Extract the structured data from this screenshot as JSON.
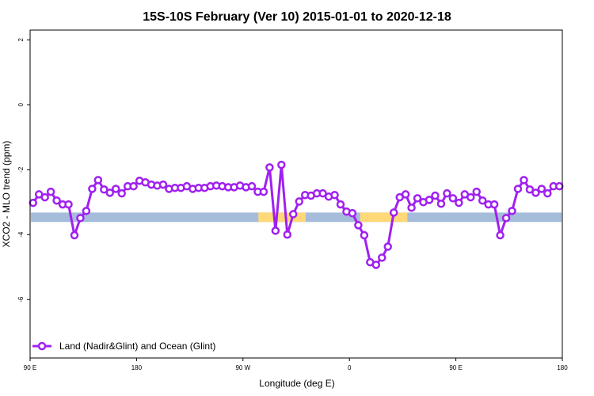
{
  "chart_data": {
    "type": "line",
    "title": "15S-10S February (Ver 10)   2015-01-01 to 2020-12-18",
    "xlabel": "Longitude (deg E)",
    "ylabel": "XCO2 - MLO trend (ppm)",
    "xlim": [
      90,
      540
    ],
    "ylim": [
      -7.8,
      2.3
    ],
    "x_ticks": [
      {
        "value": 90,
        "label": "90 E"
      },
      {
        "value": 180,
        "label": "180"
      },
      {
        "value": 270,
        "label": "90 W"
      },
      {
        "value": 360,
        "label": "0"
      },
      {
        "value": 450,
        "label": "90 E"
      },
      {
        "value": 540,
        "label": "180"
      }
    ],
    "y_ticks": [
      {
        "value": 2,
        "label": "2"
      },
      {
        "value": 0,
        "label": "0"
      },
      {
        "value": -2,
        "label": "-2"
      },
      {
        "value": -4,
        "label": "-4"
      },
      {
        "value": -6,
        "label": "-6"
      }
    ],
    "grid": false,
    "legend_placement": "bottom-left",
    "series": [
      {
        "name": "Land (Nadir&Glint) and Ocean (Glint)",
        "color": "#A020F0",
        "x_start": 92.5,
        "x_step": 5,
        "values": [
          -3.02,
          -2.76,
          -2.85,
          -2.68,
          -2.95,
          -3.07,
          -3.07,
          -4.02,
          -3.49,
          -3.27,
          -2.59,
          -2.32,
          -2.61,
          -2.71,
          -2.59,
          -2.73,
          -2.51,
          -2.51,
          -2.34,
          -2.39,
          -2.46,
          -2.49,
          -2.46,
          -2.59,
          -2.56,
          -2.56,
          -2.51,
          -2.59,
          -2.56,
          -2.56,
          -2.51,
          -2.49,
          -2.51,
          -2.54,
          -2.54,
          -2.49,
          -2.54,
          -2.51,
          -2.68,
          -2.68,
          -1.93,
          -3.88,
          -1.85,
          -4.0,
          -3.37,
          -2.98,
          -2.78,
          -2.8,
          -2.73,
          -2.73,
          -2.83,
          -2.78,
          -3.07,
          -3.29,
          -3.34,
          -3.71,
          -4.02,
          -4.85,
          -4.93,
          -4.71,
          -4.37,
          -3.32,
          -2.85,
          -2.76,
          -3.17,
          -2.88,
          -3.0,
          -2.93,
          -2.8,
          -3.05,
          -2.73,
          -2.88,
          -3.02,
          -2.76,
          -2.85,
          -2.68,
          -2.95,
          -3.07,
          -3.07,
          -4.02,
          -3.49,
          -3.27,
          -2.59,
          -2.32,
          -2.61,
          -2.71,
          -2.59,
          -2.73,
          -2.51,
          -2.51
        ]
      }
    ],
    "surface_band": {
      "y_range": [
        -3.61,
        -3.32
      ],
      "land_color": "#A5BCDB",
      "ocean_color": "#FFD878",
      "ocean_segments": [
        [
          283,
          323
        ],
        [
          369,
          409
        ]
      ]
    }
  }
}
